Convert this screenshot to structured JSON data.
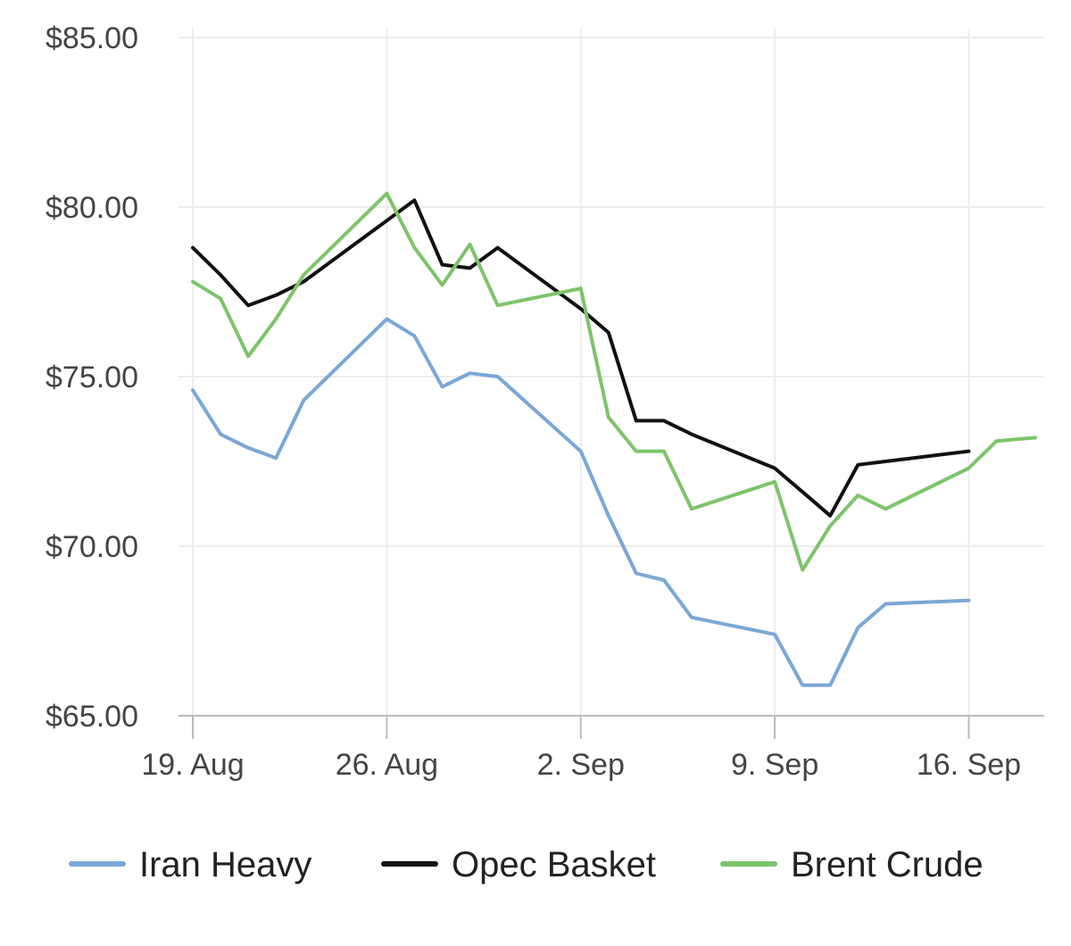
{
  "chart_data": {
    "type": "line",
    "title": "",
    "xlabel": "",
    "ylabel": "",
    "ylim": [
      65,
      85
    ],
    "y_ticks": [
      "$85.00",
      "$80.00",
      "$75.00",
      "$70.00",
      "$65.00"
    ],
    "y_tick_values": [
      85,
      80,
      75,
      70,
      65
    ],
    "x_ticks": [
      "19. Aug",
      "26. Aug",
      "2. Sep",
      "9. Sep",
      "16. Sep"
    ],
    "x_tick_days": [
      19,
      26,
      33,
      40,
      47
    ],
    "xlim_days": [
      19,
      49.4
    ],
    "grid": true,
    "legend_position": "bottom",
    "series": [
      {
        "name": "Iran Heavy",
        "color": "#7aa7d6",
        "x": [
          19,
          20,
          21,
          22,
          23,
          26,
          27,
          28,
          29,
          30,
          33,
          34,
          35,
          36,
          37,
          40,
          41,
          42,
          43,
          44,
          47
        ],
        "y": [
          74.6,
          73.3,
          72.9,
          72.6,
          74.3,
          76.7,
          76.2,
          74.7,
          75.1,
          75.0,
          72.8,
          70.9,
          69.2,
          69.0,
          67.9,
          67.4,
          65.9,
          65.9,
          67.6,
          68.3,
          68.4
        ]
      },
      {
        "name": "Opec Basket",
        "color": "#111111",
        "x": [
          19,
          20,
          21,
          22,
          23,
          26,
          27,
          28,
          29,
          30,
          33,
          34,
          35,
          36,
          37,
          40,
          41,
          42,
          43,
          44,
          47
        ],
        "y": [
          78.8,
          78.0,
          77.1,
          77.4,
          77.8,
          79.6,
          80.2,
          78.3,
          78.2,
          78.8,
          77.0,
          76.3,
          73.7,
          73.7,
          73.3,
          72.3,
          71.6,
          70.9,
          72.4,
          72.5,
          72.8
        ]
      },
      {
        "name": "Brent Crude",
        "color": "#7dc46a",
        "x": [
          19,
          20,
          21,
          22,
          23,
          26,
          27,
          28,
          29,
          30,
          33,
          34,
          35,
          36,
          37,
          40,
          41,
          42,
          43,
          44,
          47,
          48,
          49.4
        ],
        "y": [
          77.8,
          77.3,
          75.6,
          76.7,
          78.0,
          80.4,
          78.8,
          77.7,
          78.9,
          77.1,
          77.6,
          73.8,
          72.8,
          72.8,
          71.1,
          71.9,
          69.3,
          70.6,
          71.5,
          71.1,
          72.3,
          73.1,
          73.2
        ]
      }
    ]
  }
}
